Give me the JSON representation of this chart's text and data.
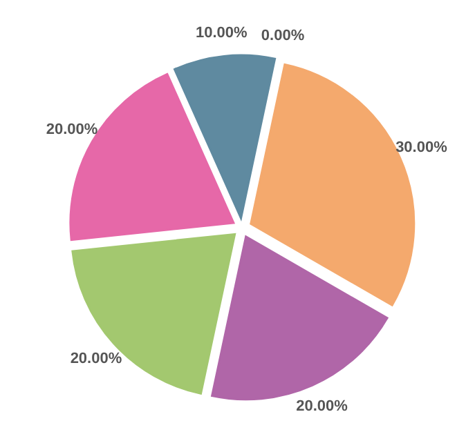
{
  "chart_data": {
    "type": "pie",
    "categories": [
      null,
      null,
      null,
      null,
      null,
      null
    ],
    "values": [
      0,
      30,
      20,
      20,
      20,
      10
    ],
    "value_labels": [
      "0.00%",
      "30.00%",
      "20.00%",
      "20.00%",
      "20.00%",
      "10.00%"
    ],
    "colors": [
      "#1f3d52",
      "#f4a96d",
      "#b066a8",
      "#a3c86f",
      "#e668a8",
      "#5f8aa0"
    ]
  }
}
